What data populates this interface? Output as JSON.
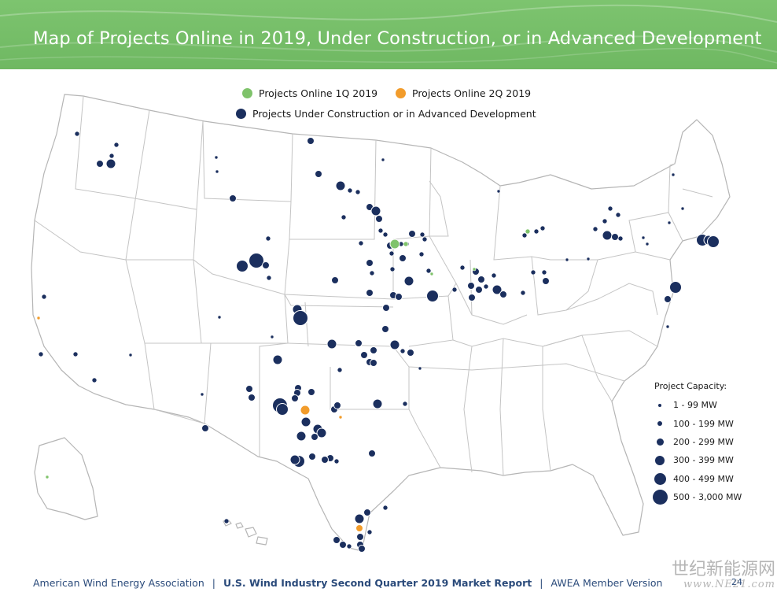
{
  "header": {
    "title": "Map of Projects Online in 2019, Under Construction, or in Advanced Development",
    "background_color": "#6fb862"
  },
  "legend": {
    "items": [
      {
        "label": "Projects Online 1Q 2019",
        "color": "#7fc36b"
      },
      {
        "label": "Projects Online 2Q 2019",
        "color": "#f29c2b"
      },
      {
        "label": "Projects Under Construction or in Advanced Development",
        "color": "#1b2f5e"
      }
    ]
  },
  "capacity_legend": {
    "title": "Project Capacity:",
    "classes": [
      {
        "label": "1 - 99 MW"
      },
      {
        "label": "100 - 199 MW"
      },
      {
        "label": "200 - 299 MW"
      },
      {
        "label": "300 - 399 MW"
      },
      {
        "label": "400 - 499 MW"
      },
      {
        "label": "500 - 3,000 MW"
      }
    ]
  },
  "map": {
    "region": "United States (including Alaska and Hawaii insets)",
    "land_color": "#ffffff",
    "border_color": "#b5b5b5",
    "dot_outline": "#ffffff"
  },
  "footer": {
    "org": "American Wind Energy Association",
    "separator": "|",
    "report": "U.S. Wind Industry Second Quarter 2019 Market Report",
    "version": "AWEA Member Version",
    "page": "24",
    "color": "#2a4a7a"
  },
  "watermark": {
    "line1": "世纪新能源网",
    "line2": "www.NE21.com"
  }
}
